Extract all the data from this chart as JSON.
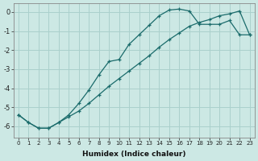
{
  "xlabel": "Humidex (Indice chaleur)",
  "bg_color": "#cce8e4",
  "grid_color": "#aad0cc",
  "line_color": "#1a6b6b",
  "x_values": [
    0,
    1,
    2,
    3,
    4,
    5,
    6,
    7,
    8,
    9,
    10,
    11,
    12,
    13,
    14,
    15,
    16,
    17,
    18,
    19,
    20,
    21,
    22,
    23
  ],
  "line1_y": [
    -5.4,
    -5.8,
    -6.1,
    -6.1,
    -5.8,
    -5.4,
    -4.8,
    -4.1,
    -3.3,
    -2.6,
    -2.5,
    -1.7,
    -1.2,
    -0.7,
    -0.2,
    0.1,
    0.15,
    0.05,
    -0.65,
    -0.65,
    -0.65,
    -0.45,
    -1.2,
    -1.2
  ],
  "line2_y": [
    -5.4,
    -5.8,
    -6.1,
    -6.1,
    -5.8,
    -5.5,
    -5.2,
    -4.8,
    -4.35,
    -3.9,
    -3.5,
    -3.1,
    -2.7,
    -2.3,
    -1.85,
    -1.45,
    -1.1,
    -0.75,
    -0.55,
    -0.4,
    -0.2,
    -0.1,
    0.05,
    -1.2
  ],
  "yticks": [
    0,
    -1,
    -2,
    -3,
    -4,
    -5,
    -6
  ],
  "xticks": [
    0,
    1,
    2,
    3,
    4,
    5,
    6,
    7,
    8,
    9,
    10,
    11,
    12,
    13,
    14,
    15,
    16,
    17,
    18,
    19,
    20,
    21,
    22,
    23
  ],
  "ylim": [
    -6.6,
    0.45
  ],
  "xlim": [
    -0.5,
    23.5
  ]
}
